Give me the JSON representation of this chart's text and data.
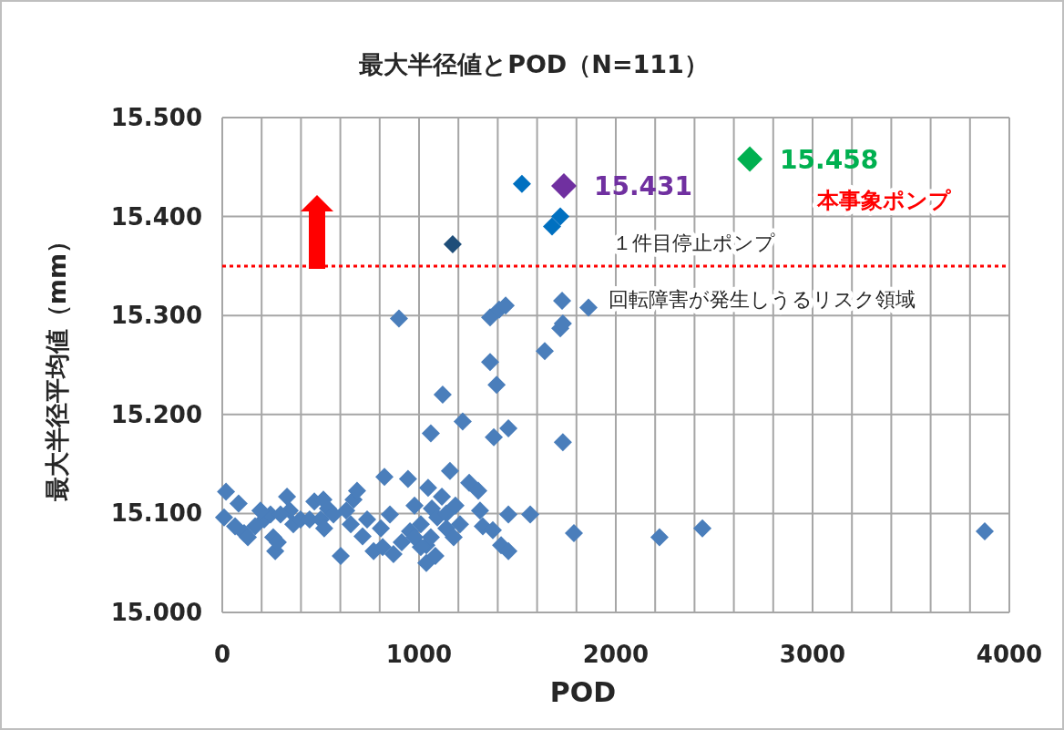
{
  "chart_data": {
    "type": "scatter",
    "title": "最大半径値とPOD（N=111）",
    "xlabel": "POD",
    "ylabel": "最大半径平均値（mm）",
    "xlim": [
      0,
      4000
    ],
    "ylim": [
      15.0,
      15.5
    ],
    "xticks": [
      0,
      {
        "value": 200,
        "label": null
      },
      {
        "value": 400,
        "label": null
      },
      {
        "value": 600,
        "label": null
      },
      {
        "value": 800,
        "label": null
      },
      1000,
      {
        "value": 1200,
        "label": null
      },
      {
        "value": 1400,
        "label": null
      },
      {
        "value": 1600,
        "label": null
      },
      {
        "value": 1800,
        "label": null
      },
      2000,
      {
        "value": 2200,
        "label": null
      },
      {
        "value": 2400,
        "label": null
      },
      {
        "value": 2600,
        "label": null
      },
      {
        "value": 2800,
        "label": null
      },
      3000,
      {
        "value": 3200,
        "label": null
      },
      {
        "value": 3400,
        "label": null
      },
      {
        "value": 3600,
        "label": null
      },
      {
        "value": 3800,
        "label": null
      },
      4000
    ],
    "yticks": [
      {
        "value": 15.0,
        "label": "15.000"
      },
      {
        "value": 15.1,
        "label": "15.100"
      },
      {
        "value": 15.2,
        "label": "15.200"
      },
      {
        "value": 15.3,
        "label": "15.300"
      },
      {
        "value": 15.4,
        "label": "15.400"
      },
      {
        "value": 15.5,
        "label": "15.500"
      }
    ],
    "grid": true,
    "marker": "diamond",
    "series": [
      {
        "color": "#4a7ebb",
        "x": [
          19,
          9,
          83,
          65,
          111,
          167,
          130,
          213,
          245,
          259,
          269,
          282,
          329,
          343,
          361,
          398,
          444,
          468,
          514,
          500,
          537,
          565,
          518,
          602,
          667,
          685,
          653,
          713,
          736,
          769,
          824,
          806,
          852,
          870,
          898,
          912,
          944,
          954,
          977,
          1009,
          1037,
          1046,
          1060,
          1065,
          1037,
          1083,
          1093,
          1116,
          1120,
          1139,
          1157,
          1176,
          1208,
          1222,
          1255,
          1301,
          1310,
          1324,
          1361,
          1361,
          1394,
          1380,
          1407,
          1440,
          1375,
          1417,
          1454,
          1454,
          1454,
          1565,
          1639,
          1727,
          1718,
          1731,
          1731,
          1787,
          1861,
          2222,
          2440,
          3875,
          1009,
          977,
          1060,
          815,
          296,
          194,
          630,
          1139,
          1185
        ],
        "values": [
          15.122,
          15.096,
          15.11,
          15.087,
          15.08,
          15.087,
          15.076,
          15.094,
          15.099,
          15.076,
          15.062,
          15.071,
          15.117,
          15.103,
          15.089,
          15.094,
          15.094,
          15.112,
          15.114,
          15.094,
          15.105,
          15.099,
          15.085,
          15.057,
          15.114,
          15.123,
          15.089,
          15.077,
          15.094,
          15.062,
          15.137,
          15.085,
          15.099,
          15.059,
          15.297,
          15.071,
          15.135,
          15.082,
          15.108,
          15.089,
          15.068,
          15.126,
          15.181,
          15.105,
          15.05,
          15.057,
          15.096,
          15.117,
          15.22,
          15.085,
          15.143,
          15.076,
          15.089,
          15.193,
          15.131,
          15.123,
          15.103,
          15.087,
          15.253,
          15.298,
          15.23,
          15.177,
          15.306,
          15.31,
          15.083,
          15.068,
          15.062,
          15.186,
          15.099,
          15.099,
          15.264,
          15.315,
          15.287,
          15.292,
          15.172,
          15.08,
          15.308,
          15.076,
          15.085,
          15.082,
          15.066,
          15.076,
          15.076,
          15.066,
          15.099,
          15.103,
          15.103,
          15.1,
          15.108
        ]
      },
      {
        "color": "#0070c0",
        "x": [
          1523,
          1676,
          1718
        ],
        "values": [
          15.433,
          15.39,
          15.4
        ]
      },
      {
        "color": "#1f4e79",
        "x": [
          1171
        ],
        "values": [
          15.372
        ]
      },
      {
        "color": "#7030a0",
        "x": [
          1736
        ],
        "values": [
          15.431
        ],
        "value_labels": [
          "15.431"
        ]
      },
      {
        "color": "#00b050",
        "x": [
          2681
        ],
        "values": [
          15.458
        ],
        "value_labels": [
          "15.458"
        ]
      }
    ],
    "ref_lines": [
      {
        "axis": "y",
        "value": 15.35,
        "color": "#ff0000",
        "line_style": "dotted"
      }
    ],
    "annotations": [
      "本事象ポンプ",
      "１件目停止ポンプ",
      "回転障害が発生しうるリスク領域"
    ]
  }
}
